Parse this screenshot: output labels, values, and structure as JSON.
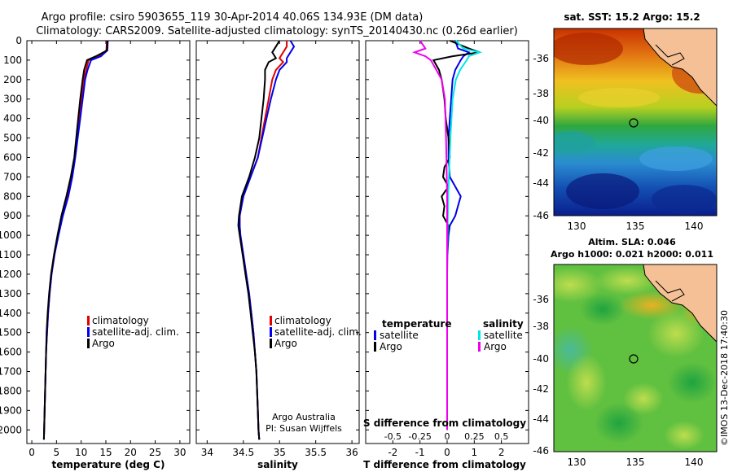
{
  "header": {
    "line1": "Argo profile: csiro 5903655_119 30-Apr-2014 40.06S 134.93E (DM data)",
    "line2": "Climatology: CARS2009. Satellite-adjusted climatology: synTS_20140430.nc (0.26d earlier)"
  },
  "colors": {
    "climatology": "#e00000",
    "satellite": "#0000ee",
    "argo": "#000000",
    "argo_sal": "#ee00ee",
    "sat_sal": "#00e6e6"
  },
  "credit": {
    "line1": "Argo Australia",
    "line2": "PI: Susan Wijffels"
  },
  "footer_stamp": "©IMOS 13-Dec-2018 17:40:30",
  "chart_data": [
    {
      "type": "line",
      "name": "temperature",
      "xlabel": "temperature (deg C)",
      "ylabel": "",
      "xlim": [
        -1,
        32
      ],
      "ylim": [
        2070,
        0
      ],
      "x_ticks": [
        0,
        5,
        10,
        15,
        20,
        25,
        30
      ],
      "y_ticks": [
        0,
        100,
        200,
        300,
        400,
        500,
        600,
        700,
        800,
        900,
        1000,
        1100,
        1200,
        1300,
        1400,
        1500,
        1600,
        1700,
        1800,
        1900,
        2000
      ],
      "legend": [
        "climatology",
        "satellite-adj. clim.",
        "Argo"
      ],
      "series": [
        {
          "name": "climatology",
          "color": "#e00000",
          "depth": [
            0,
            50,
            80,
            100,
            150,
            200,
            300,
            400,
            500,
            600,
            700,
            800,
            900,
            1000,
            1100,
            1200,
            1300,
            1400,
            1500,
            1600,
            1700,
            1800,
            1900,
            2000,
            2050
          ],
          "value": [
            15.2,
            15.1,
            13.5,
            11.5,
            11.0,
            10.5,
            10.0,
            9.6,
            9.2,
            8.7,
            8.1,
            7.3,
            6.2,
            5.3,
            4.6,
            4.0,
            3.6,
            3.3,
            3.1,
            2.9,
            2.8,
            2.7,
            2.6,
            2.5,
            2.45
          ]
        },
        {
          "name": "satellite-adj. clim.",
          "color": "#0000ee",
          "depth": [
            0,
            50,
            80,
            100,
            150,
            200,
            300,
            400,
            500,
            600,
            700,
            800,
            900,
            1000,
            1100,
            1200,
            1300,
            1400,
            1500,
            1600,
            1700,
            1800,
            1900,
            2000,
            2050
          ],
          "value": [
            15.4,
            15.3,
            14.0,
            12.0,
            11.3,
            10.8,
            10.3,
            9.8,
            9.3,
            8.8,
            8.2,
            7.4,
            6.3,
            5.4,
            4.6,
            4.0,
            3.6,
            3.3,
            3.1,
            2.9,
            2.8,
            2.7,
            2.6,
            2.5,
            2.45
          ]
        },
        {
          "name": "Argo",
          "color": "#000000",
          "depth": [
            0,
            50,
            80,
            100,
            150,
            200,
            300,
            400,
            500,
            600,
            700,
            800,
            900,
            1000,
            1100,
            1200,
            1300,
            1400,
            1500,
            1600,
            1700,
            1800,
            1900,
            2000,
            2050
          ],
          "value": [
            15.3,
            15.2,
            13.0,
            11.2,
            10.6,
            10.3,
            9.8,
            9.4,
            9.0,
            8.6,
            7.9,
            7.0,
            6.0,
            5.2,
            4.5,
            3.9,
            3.5,
            3.2,
            3.0,
            2.9,
            2.8,
            2.7,
            2.6,
            2.5,
            2.45
          ]
        }
      ]
    },
    {
      "type": "line",
      "name": "salinity",
      "xlabel": "salinity",
      "xlim": [
        33.85,
        36.1
      ],
      "ylim": [
        2070,
        0
      ],
      "x_ticks": [
        34,
        34.5,
        35,
        35.5,
        36
      ],
      "legend": [
        "climatology",
        "satellite-adj. clim.",
        "Argo"
      ],
      "series": [
        {
          "name": "climatology",
          "color": "#e00000",
          "depth": [
            0,
            30,
            60,
            90,
            110,
            150,
            200,
            300,
            400,
            500,
            600,
            700,
            800,
            900,
            950,
            1000,
            1100,
            1200,
            1300,
            1400,
            1500,
            1600,
            1700,
            1800,
            1900,
            2000,
            2050
          ],
          "value": [
            35.1,
            35.1,
            35.05,
            35.0,
            35.05,
            34.95,
            34.9,
            34.85,
            34.8,
            34.75,
            34.7,
            34.6,
            34.5,
            34.45,
            34.45,
            34.46,
            34.5,
            34.54,
            34.58,
            34.61,
            34.64,
            34.66,
            34.68,
            34.69,
            34.7,
            34.71,
            34.72
          ]
        },
        {
          "name": "satellite-adj. clim.",
          "color": "#0000ee",
          "depth": [
            0,
            30,
            60,
            90,
            110,
            150,
            200,
            300,
            400,
            500,
            600,
            700,
            800,
            900,
            950,
            1000,
            1100,
            1200,
            1300,
            1400,
            1500,
            1600,
            1700,
            1800,
            1900,
            2000,
            2050
          ],
          "value": [
            35.15,
            35.2,
            35.15,
            35.1,
            35.1,
            35.0,
            34.95,
            34.88,
            34.82,
            34.76,
            34.7,
            34.6,
            34.5,
            34.45,
            34.45,
            34.46,
            34.5,
            34.54,
            34.58,
            34.61,
            34.64,
            34.66,
            34.68,
            34.69,
            34.7,
            34.71,
            34.72
          ]
        },
        {
          "name": "Argo",
          "color": "#000000",
          "depth": [
            0,
            30,
            60,
            90,
            110,
            150,
            200,
            300,
            400,
            500,
            600,
            700,
            800,
            900,
            950,
            1000,
            1100,
            1200,
            1300,
            1400,
            1500,
            1600,
            1700,
            1800,
            1900,
            2000,
            2050
          ],
          "value": [
            35.0,
            34.95,
            34.9,
            34.95,
            34.85,
            34.8,
            34.8,
            34.78,
            34.75,
            34.72,
            34.66,
            34.58,
            34.48,
            34.44,
            34.43,
            34.45,
            34.49,
            34.53,
            34.57,
            34.6,
            34.63,
            34.66,
            34.68,
            34.69,
            34.7,
            34.71,
            34.72
          ]
        }
      ]
    },
    {
      "type": "line",
      "name": "difference from climatology",
      "xlabel": "T difference from climatology",
      "top_label": "S difference from climatology",
      "xlim": [
        -3,
        3
      ],
      "ylim": [
        2070,
        0
      ],
      "x_ticks": [
        -2,
        -1,
        0,
        1,
        2
      ],
      "top_ticks": [
        -0.5,
        -0.25,
        0,
        0.25,
        0.5
      ],
      "legend_headers": [
        "temperature",
        "salinity"
      ],
      "legend": [
        "satellite",
        "Argo",
        "satellite",
        "Argo"
      ],
      "series": [
        {
          "name": "T satellite",
          "color": "#0000ee",
          "depth": [
            0,
            40,
            60,
            80,
            100,
            150,
            200,
            300,
            400,
            500,
            600,
            700,
            750,
            800,
            850,
            900,
            950,
            1000,
            1050,
            1100,
            1200,
            1500,
            2000
          ],
          "value": [
            0.3,
            0.4,
            0.8,
            0.6,
            0.5,
            0.3,
            0.2,
            0.15,
            0.1,
            0.05,
            0.05,
            0.1,
            0.3,
            0.5,
            0.4,
            0.3,
            0.1,
            0.05,
            0.03,
            0.01,
            0.0,
            0.0,
            0.0
          ]
        },
        {
          "name": "T Argo",
          "color": "#000000",
          "depth": [
            0,
            40,
            60,
            80,
            100,
            150,
            200,
            300,
            400,
            500,
            600,
            650,
            700,
            750,
            800,
            850,
            900,
            950,
            1000,
            1100,
            1200,
            1500,
            2000
          ],
          "value": [
            0.1,
            0.8,
            1.2,
            0.2,
            -0.5,
            -0.3,
            -0.2,
            -0.1,
            -0.05,
            0.05,
            0.1,
            -0.1,
            -0.15,
            0.05,
            -0.2,
            -0.1,
            -0.15,
            0.05,
            0.02,
            0.0,
            0.0,
            0.0,
            0.0
          ]
        },
        {
          "name": "S satellite",
          "color": "#00e6e6",
          "depth": [
            0,
            40,
            60,
            80,
            100,
            150,
            200,
            300,
            500,
            800,
            1100,
            1500,
            2000
          ],
          "value": [
            0.08,
            0.15,
            0.3,
            0.2,
            0.18,
            0.12,
            0.08,
            0.05,
            0.03,
            0.01,
            0.0,
            0.0,
            0.0
          ]
        },
        {
          "name": "S Argo",
          "color": "#ee00ee",
          "depth": [
            0,
            40,
            60,
            80,
            100,
            150,
            200,
            300,
            500,
            800,
            1100,
            1500,
            2000
          ],
          "value": [
            -0.25,
            -0.2,
            -0.3,
            -0.2,
            -0.15,
            -0.1,
            -0.05,
            -0.02,
            -0.01,
            0.0,
            0.0,
            0.0,
            0.0
          ]
        }
      ]
    }
  ],
  "maps": {
    "sst": {
      "title": "sat. SST: 15.2 Argo: 15.2",
      "x_ticks": [
        "130",
        "135",
        "140"
      ],
      "y_ticks": [
        "-36",
        "-38",
        "-40",
        "-42",
        "-44",
        "-46"
      ],
      "marker_lon": 134.93,
      "marker_lat": -40.06
    },
    "sla": {
      "title1": "Altim. SLA: 0.046",
      "title2": "Argo h1000: 0.021 h2000: 0.011",
      "x_ticks": [
        "130",
        "135",
        "140"
      ],
      "y_ticks": [
        "-36",
        "-38",
        "-40",
        "-42",
        "-44",
        "-46"
      ],
      "marker_lon": 134.93,
      "marker_lat": -40.06
    }
  }
}
